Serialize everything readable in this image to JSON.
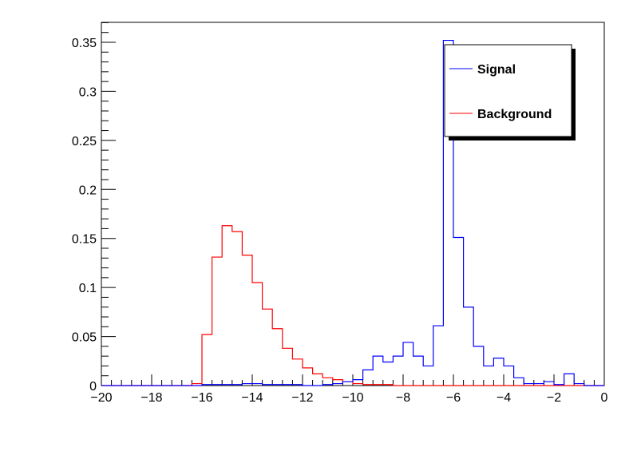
{
  "chart_data": {
    "type": "histogram",
    "title": "",
    "xlabel": "",
    "ylabel": "",
    "xlim": [
      -20,
      0
    ],
    "ylim": [
      0,
      0.37
    ],
    "bin_width": 0.4,
    "x_ticks": [
      -20,
      -18,
      -16,
      -14,
      -12,
      -10,
      -8,
      -6,
      -4,
      -2,
      0
    ],
    "x_tick_labels": [
      "−20",
      "−18",
      "−16",
      "−14",
      "−12",
      "−10",
      "−8",
      "−6",
      "−4",
      "−2",
      "0"
    ],
    "y_ticks": [
      0,
      0.05,
      0.1,
      0.15,
      0.2,
      0.25,
      0.3,
      0.35
    ],
    "y_tick_labels": [
      "0",
      "0.05",
      "0.1",
      "0.15",
      "0.2",
      "0.25",
      "0.3",
      "0.35"
    ],
    "grid": false,
    "legend_position": "top-right",
    "series": [
      {
        "name": "Signal",
        "color": "#0000ff",
        "bin_starts": [
          -20.0,
          -19.6,
          -19.2,
          -18.8,
          -18.4,
          -18.0,
          -17.6,
          -17.2,
          -16.8,
          -16.4,
          -16.0,
          -15.6,
          -15.2,
          -14.8,
          -14.4,
          -14.0,
          -13.6,
          -13.2,
          -12.8,
          -12.4,
          -12.0,
          -11.6,
          -11.2,
          -10.8,
          -10.4,
          -10.0,
          -9.6,
          -9.2,
          -8.8,
          -8.4,
          -8.0,
          -7.6,
          -7.2,
          -6.8,
          -6.4,
          -6.0,
          -5.6,
          -5.2,
          -4.8,
          -4.4,
          -4.0,
          -3.6,
          -3.2,
          -2.8,
          -2.4,
          -2.0,
          -1.6,
          -1.2,
          -0.8,
          -0.4
        ],
        "values": [
          0,
          0,
          0,
          0,
          0,
          0,
          0,
          0,
          0,
          0,
          0.001,
          0.001,
          0.001,
          0.001,
          0.002,
          0.002,
          0.001,
          0.001,
          0.001,
          0.001,
          0,
          0,
          0.001,
          0.002,
          0.004,
          0.006,
          0.016,
          0.03,
          0.024,
          0.03,
          0.044,
          0.03,
          0.02,
          0.061,
          0.352,
          0.151,
          0.08,
          0.04,
          0.02,
          0.028,
          0.02,
          0.008,
          0.002,
          0.002,
          0.004,
          0.001,
          0.012,
          0.002,
          0,
          0
        ]
      },
      {
        "name": "Background",
        "color": "#ff0000",
        "bin_starts": [
          -20.0,
          -19.6,
          -19.2,
          -18.8,
          -18.4,
          -18.0,
          -17.6,
          -17.2,
          -16.8,
          -16.4,
          -16.0,
          -15.6,
          -15.2,
          -14.8,
          -14.4,
          -14.0,
          -13.6,
          -13.2,
          -12.8,
          -12.4,
          -12.0,
          -11.6,
          -11.2,
          -10.8,
          -10.4,
          -10.0,
          -9.6,
          -9.2,
          -8.8,
          -8.4,
          -8.0,
          -7.6,
          -7.2,
          -6.8,
          -6.4,
          -6.0,
          -5.6,
          -5.2,
          -4.8,
          -4.4,
          -4.0,
          -3.6,
          -3.2,
          -2.8,
          -2.4,
          -2.0,
          -1.6,
          -1.2,
          -0.8,
          -0.4
        ],
        "values": [
          0,
          0,
          0,
          0,
          0,
          0,
          0,
          0,
          0,
          0.002,
          0.052,
          0.131,
          0.163,
          0.157,
          0.133,
          0.105,
          0.078,
          0.058,
          0.038,
          0.027,
          0.018,
          0.012,
          0.008,
          0.006,
          0.004,
          0.002,
          0.001,
          0.001,
          0.001,
          0,
          0,
          0,
          0,
          0,
          0,
          0,
          0,
          0,
          0,
          0,
          0,
          0,
          0,
          0,
          0,
          0,
          0,
          0,
          0,
          0
        ]
      }
    ]
  }
}
